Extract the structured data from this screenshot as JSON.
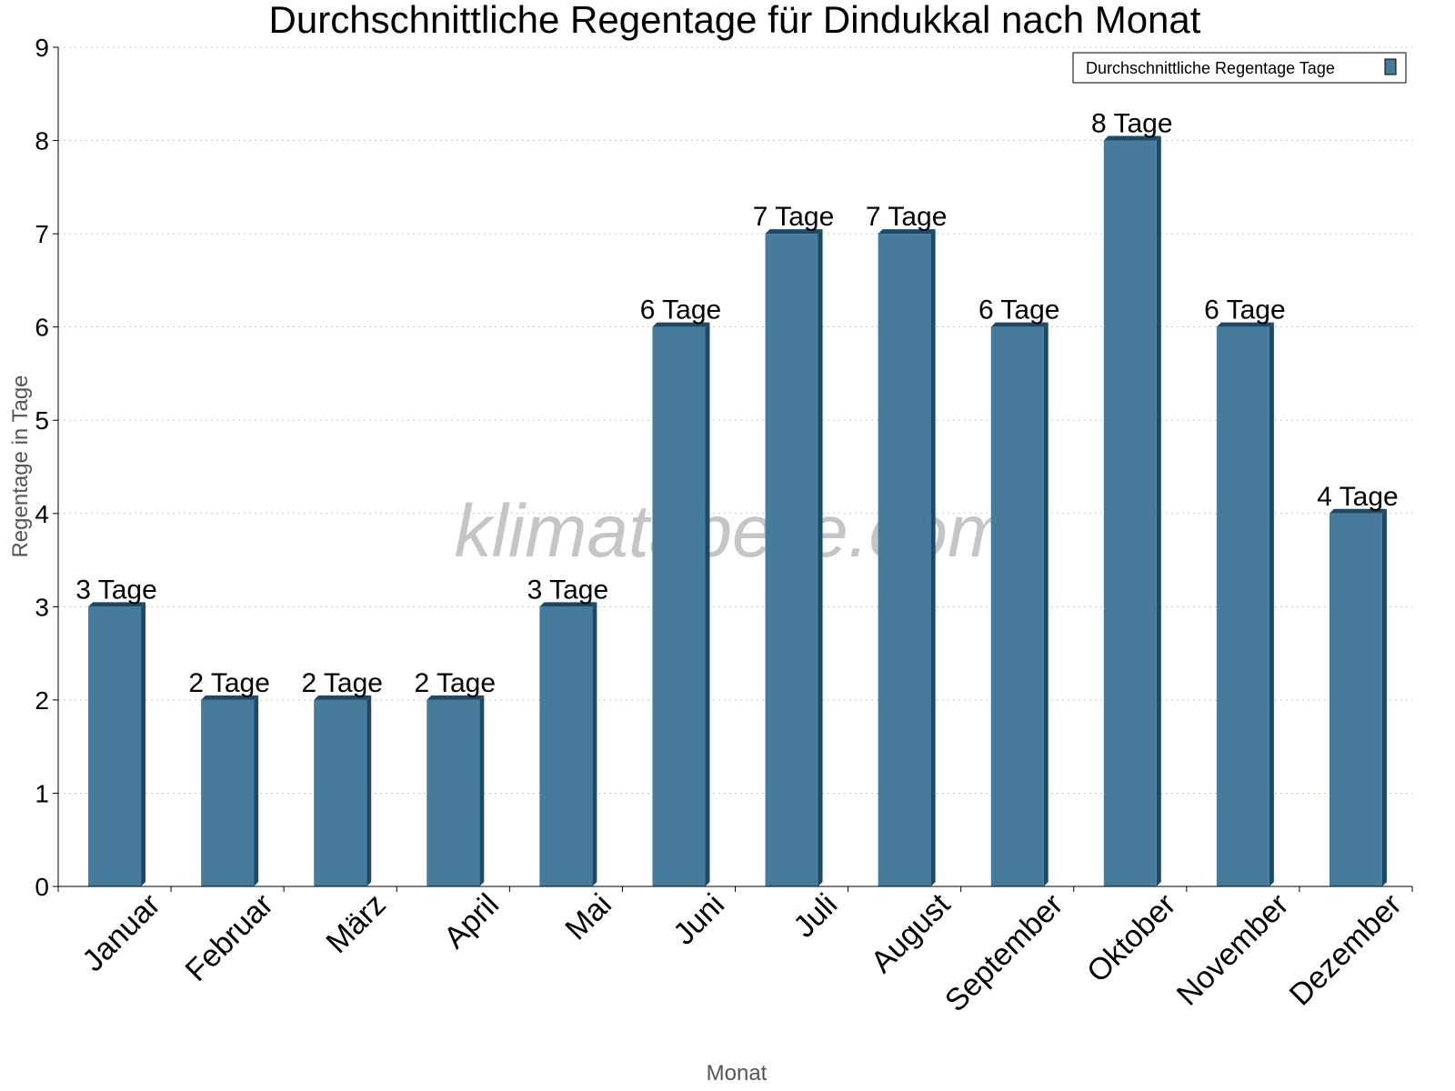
{
  "chart_data": {
    "type": "bar",
    "title": "Durchschnittliche Regentage für Dindukkal nach Monat",
    "xlabel": "Monat",
    "ylabel": "Regentage in Tage",
    "categories": [
      "Januar",
      "Februar",
      "März",
      "April",
      "Mai",
      "Juni",
      "Juli",
      "August",
      "September",
      "Oktober",
      "November",
      "Dezember"
    ],
    "series": [
      {
        "name": "Durchschnittliche Regentage Tage",
        "values": [
          3,
          2,
          2,
          2,
          3,
          6,
          7,
          7,
          6,
          8,
          6,
          4
        ]
      }
    ],
    "data_labels": [
      "3 Tage",
      "2 Tage",
      "2 Tage",
      "2 Tage",
      "3 Tage",
      "6 Tage",
      "7 Tage",
      "7 Tage",
      "6 Tage",
      "8 Tage",
      "6 Tage",
      "4 Tage"
    ],
    "ylim": [
      0,
      9
    ],
    "yticks": [
      "0",
      "1",
      "2",
      "3",
      "4",
      "5",
      "6",
      "7",
      "8",
      "9"
    ],
    "grid": true,
    "legend_position": "top-right",
    "watermark": "klimatabelle.com",
    "colors": {
      "bar": "#467b9c",
      "bar_edge": "#1a4a6b"
    }
  }
}
